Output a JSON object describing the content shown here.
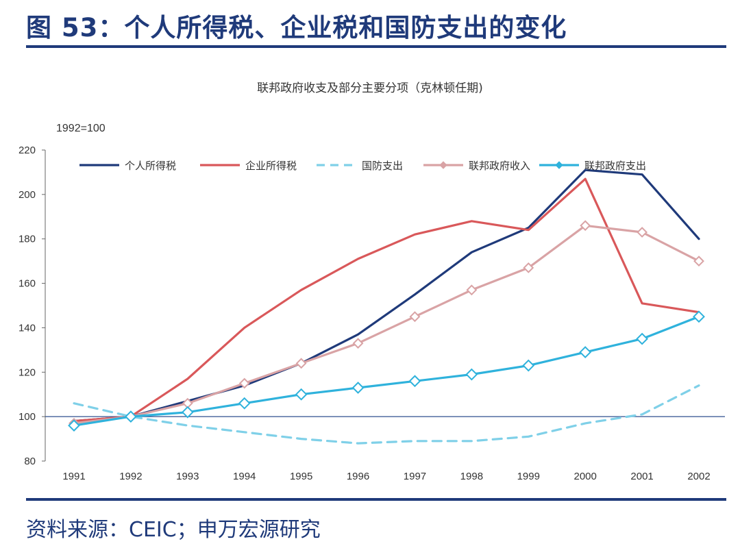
{
  "figure_title": "图 53：个人所得税、企业税和国防支出的变化",
  "source": "资料来源：CEIC；申万宏源研究",
  "chart_data": {
    "type": "line",
    "title": "联邦政府收支及部分主要分项（克林顿任期)",
    "ylabel": "1992=100",
    "xlabel": "",
    "categories": [
      "1991",
      "1992",
      "1993",
      "1994",
      "1995",
      "1996",
      "1997",
      "1998",
      "1999",
      "2000",
      "2001",
      "2002"
    ],
    "ylim": [
      80,
      220
    ],
    "yticks": [
      80,
      100,
      120,
      140,
      160,
      180,
      200,
      220
    ],
    "legend_position": "top",
    "series": [
      {
        "name": "个人所得税",
        "color": "#1f3a7a",
        "style": "solid",
        "marker": "none",
        "values": [
          98,
          100,
          107,
          114,
          124,
          137,
          155,
          174,
          185,
          211,
          209,
          180
        ]
      },
      {
        "name": "企业所得税",
        "color": "#d9585a",
        "style": "solid",
        "marker": "none",
        "values": [
          98,
          100,
          117,
          140,
          157,
          171,
          182,
          188,
          184,
          207,
          151,
          147
        ]
      },
      {
        "name": "国防支出",
        "color": "#7fd0e8",
        "style": "dashed",
        "marker": "none",
        "values": [
          106,
          100,
          96,
          93,
          90,
          88,
          89,
          89,
          91,
          97,
          101,
          114
        ]
      },
      {
        "name": "联邦政府收入",
        "color": "#d9a3a5",
        "style": "solid",
        "marker": "diamond",
        "values": [
          97,
          100,
          106,
          115,
          124,
          133,
          145,
          157,
          167,
          186,
          183,
          170
        ]
      },
      {
        "name": "联邦政府支出",
        "color": "#2fb2dc",
        "style": "solid",
        "marker": "diamond",
        "values": [
          96,
          100,
          102,
          106,
          110,
          113,
          116,
          119,
          123,
          129,
          135,
          145
        ]
      }
    ]
  }
}
